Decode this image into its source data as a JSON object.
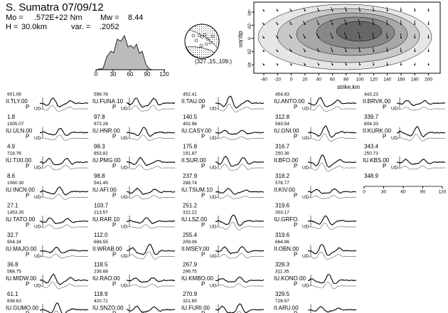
{
  "header": {
    "title": "S. Sumatra 07/09/12",
    "mo_label": "Mo =",
    "mo": ".572E+22 Nm",
    "mw_label": "Mw =",
    "mw": "8.44",
    "h_label": "H =",
    "h": "30.0km",
    "var_label": "var. =",
    "var": ".2052"
  },
  "stf": {
    "xticks": [
      "0",
      "30",
      "60",
      "90",
      "120"
    ]
  },
  "mechanism": {
    "label": "(327.,15.,109.)"
  },
  "slip_map": {
    "xlabel": "strike,km",
    "ylabel": "dip,km",
    "xticks": [
      "-40",
      "-20",
      "0",
      "20",
      "40",
      "60",
      "80",
      "100",
      "120",
      "140",
      "160",
      "180",
      "200"
    ],
    "yticks": [
      "-40",
      "-20",
      "0",
      "20",
      "40"
    ]
  },
  "phase": "P",
  "component": "UD",
  "columns": [
    [
      {
        "amp": "901.06",
        "name": "II.TLY.00",
        "az": "1.8"
      },
      {
        "amp": "1005.07",
        "name": "IU.ULN.00",
        "az": "4.9"
      },
      {
        "amp": "718.76",
        "name": "IU.TIXI.00",
        "az": "8.6"
      },
      {
        "amp": "1060.30",
        "name": "IU.INCN.00",
        "az": "27.1"
      },
      {
        "amp": "1453.35",
        "name": "IU.TATO.00",
        "az": "32.7"
      },
      {
        "amp": "904.34",
        "name": "IU.MAJO.00",
        "az": "36.8"
      },
      {
        "amp": "568.75",
        "name": "IU.MIDW.00",
        "az": "61.1"
      },
      {
        "amp": "836.63",
        "name": "IU.GUMO.00",
        "az": "66.6"
      }
    ],
    [
      {
        "amp": "598.78",
        "name": "IU.FUNA.10",
        "az": "97.8"
      },
      {
        "amp": "672.28",
        "name": "IU.HNR.00",
        "az": "98.3"
      },
      {
        "amp": "853.82",
        "name": "IU.PMG.00",
        "az": "98.8"
      },
      {
        "amp": "541.49",
        "name": "IU.AFI.00",
        "az": "103.7"
      },
      {
        "amp": "213.57",
        "name": "IU.RAR.10",
        "az": "112.0"
      },
      {
        "amp": "686.55",
        "name": "II.WRAB.00",
        "az": "118.5"
      },
      {
        "amp": "236.68",
        "name": "IU.RAO.00",
        "az": "118.9"
      },
      {
        "amp": "420.71",
        "name": "IU.SNZO.00",
        "az": "131.7"
      }
    ],
    [
      {
        "amp": "452.41",
        "name": "II.TAU.00",
        "az": "140.5"
      },
      {
        "amp": "402.96",
        "name": "IU.CASY.00",
        "az": "175.8"
      },
      {
        "amp": "191.87",
        "name": "II.SUR.00",
        "az": "237.9"
      },
      {
        "amp": "288.74",
        "name": "IU.TSUM.10",
        "az": "251.2"
      },
      {
        "amp": "322.22",
        "name": "IU.LSZ.00",
        "az": "255.4"
      },
      {
        "amp": "209.06",
        "name": "II.MSEY.00",
        "az": "267.9"
      },
      {
        "amp": "296.75",
        "name": "IU.KMBO.00",
        "az": "270.9"
      },
      {
        "amp": "321.65",
        "name": "IU.FURI.00",
        "az": "282.2"
      }
    ],
    [
      {
        "amp": "454.83",
        "name": "IU.ANTO.00",
        "az": "312.8"
      },
      {
        "amp": "583.54",
        "name": "IU.GNI.00",
        "az": "316.7"
      },
      {
        "amp": "250.36",
        "name": "II.BFO.00",
        "az": "318.2"
      },
      {
        "amp": "578.77",
        "name": "II.KIV.00",
        "az": "319.6"
      },
      {
        "amp": "303.17",
        "name": "IU.GRFO.",
        "az": "319.6"
      },
      {
        "amp": "664.96",
        "name": "II.OBN.00",
        "az": "328.3"
      },
      {
        "amp": "311.35",
        "name": "IU.KONO.00",
        "az": "329.5"
      },
      {
        "amp": "728.97",
        "name": "II.ARU.00",
        "az": "336.5"
      }
    ],
    [
      {
        "amp": "443.23",
        "name": "II.BRVK.00",
        "az": "339.7"
      },
      {
        "amp": "804.33",
        "name": "II.KURK.00",
        "az": "343.4"
      },
      {
        "amp": "250.73",
        "name": "IU.KBS.00",
        "az": "348.9"
      }
    ]
  ],
  "time_scale": {
    "ticks": [
      "0",
      "30",
      "60",
      "90",
      "120"
    ]
  }
}
